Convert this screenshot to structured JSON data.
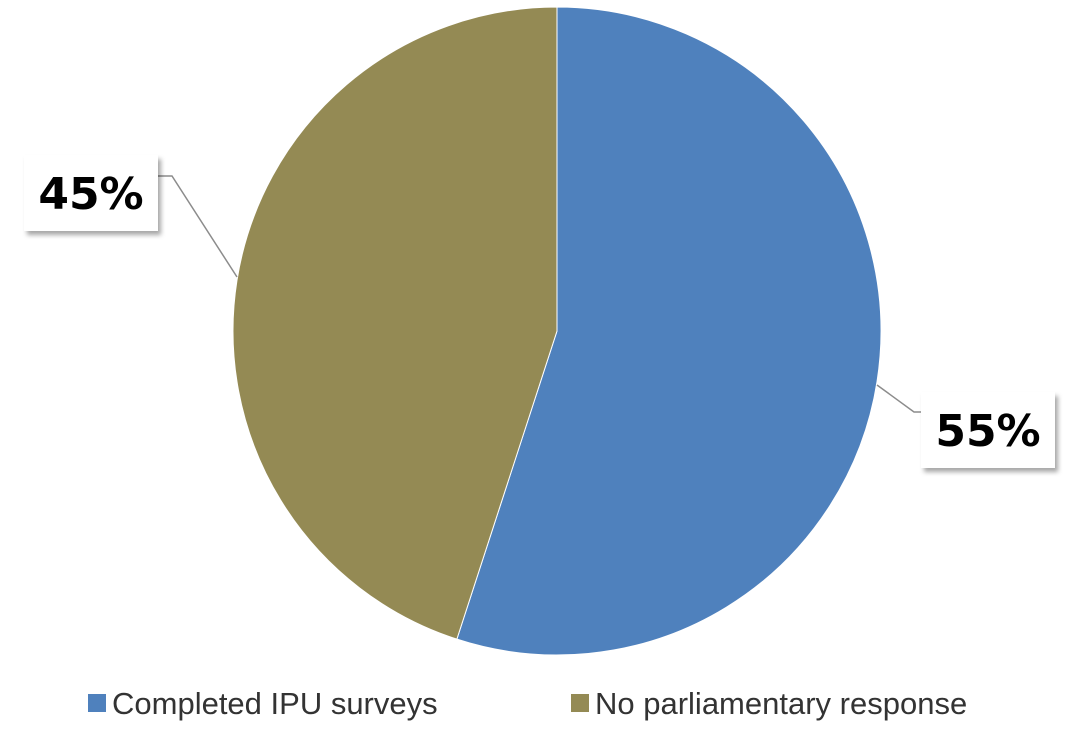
{
  "chart_data": {
    "type": "pie",
    "start_angle_deg": 0,
    "direction": "clockwise",
    "slices": [
      {
        "label": "Completed IPU surveys",
        "value": 55,
        "display": "55%",
        "color": "#4f81bd"
      },
      {
        "label": "No parliamentary response",
        "value": 45,
        "display": "45%",
        "color": "#948a54"
      }
    ],
    "legend_position": "bottom",
    "data_labels": "outside with leader lines"
  }
}
